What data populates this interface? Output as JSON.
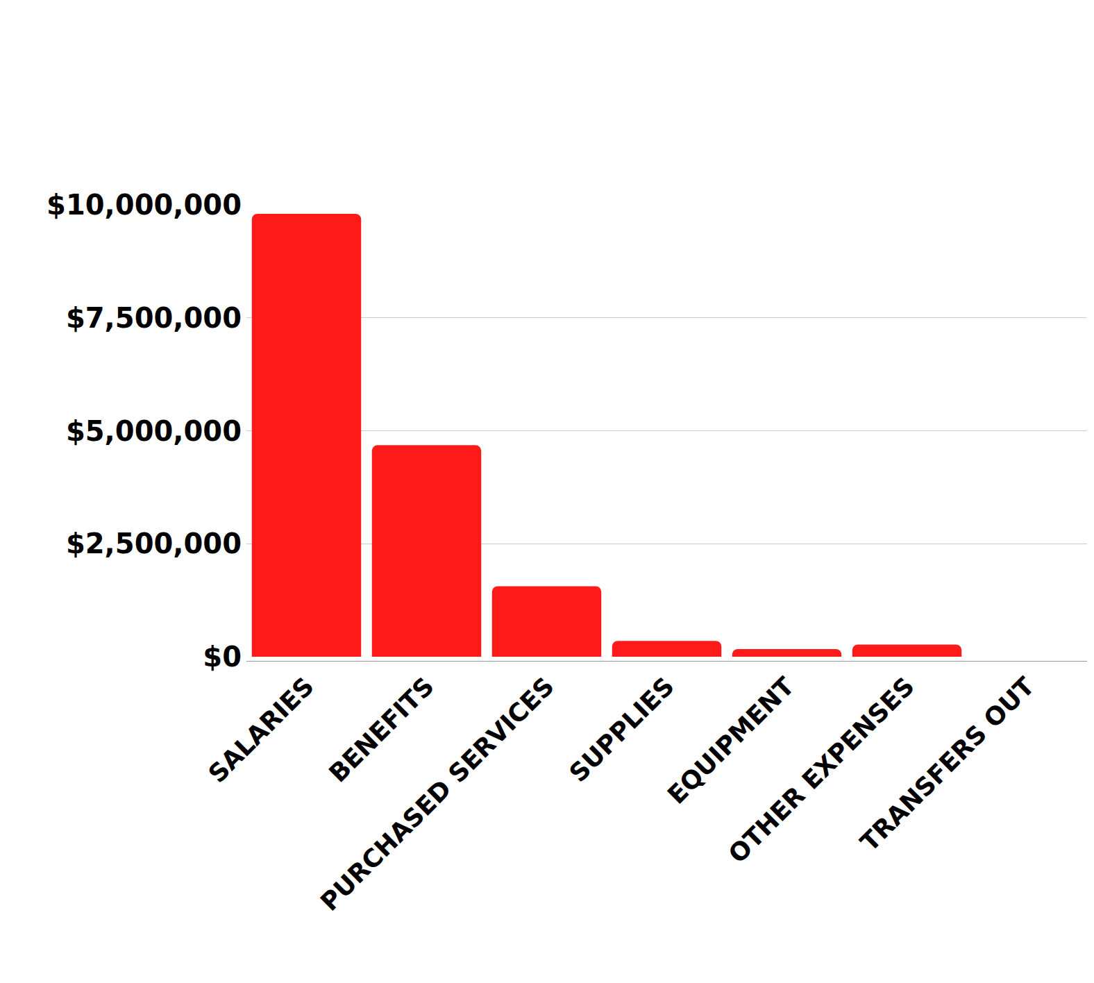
{
  "chart_data": {
    "type": "bar",
    "categories": [
      "SALARIES",
      "BENEFITS",
      "PURCHASED SERVICES",
      "SUPPLIES",
      "EQUIPMENT",
      "OTHER EXPENSES",
      "TRANSFERS OUT"
    ],
    "values": [
      9800000,
      4680000,
      1560000,
      350000,
      170000,
      270000,
      0
    ],
    "color": "#ff1a1a",
    "ylim": [
      0,
      10000000
    ],
    "yticks": [
      {
        "value": 0,
        "label": "$0"
      },
      {
        "value": 2500000,
        "label": "$2,500,000"
      },
      {
        "value": 5000000,
        "label": "$5,000,000"
      },
      {
        "value": 7500000,
        "label": "$7,500,000"
      },
      {
        "value": 10000000,
        "label": "$10,000,000"
      }
    ],
    "grid": true
  }
}
